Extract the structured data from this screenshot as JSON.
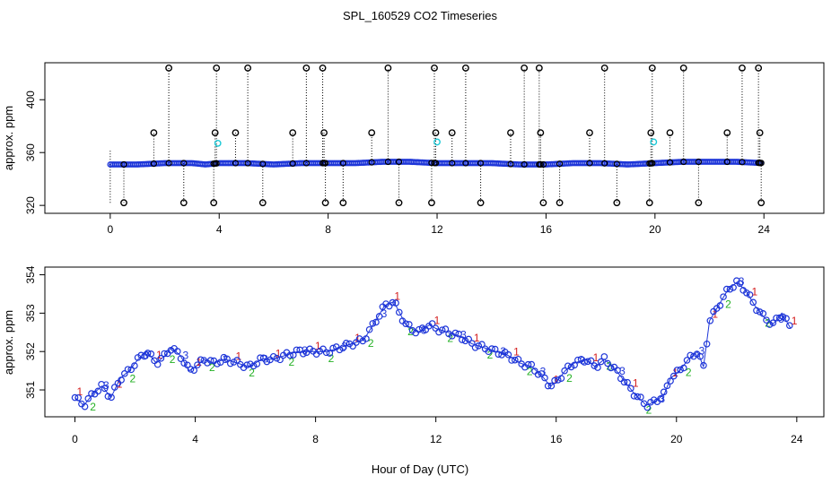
{
  "chart_data": {
    "title": "SPL_160529  CO2 Timeseries",
    "xlabel": "Hour of Day (UTC)",
    "charts": [
      {
        "type": "scatter",
        "name": "top-panel",
        "ylabel": "approx. ppm",
        "xlim": [
          -2.4,
          26.2
        ],
        "ylim": [
          314,
          428
        ],
        "xticks": [
          0,
          4,
          8,
          12,
          16,
          20,
          24
        ],
        "yticks": [
          320,
          360,
          400
        ],
        "baseline": {
          "x": [
            0,
            1,
            2,
            3,
            3.5,
            4,
            5,
            6,
            7,
            8,
            9,
            10,
            11,
            12,
            13,
            14,
            15,
            16,
            17,
            18,
            19,
            20,
            21,
            22,
            23,
            24
          ],
          "y": [
            351,
            351,
            352,
            352,
            351,
            352,
            352,
            351,
            352,
            352,
            352,
            353,
            353,
            352,
            352,
            352,
            351,
            351,
            352,
            352,
            351,
            352,
            353,
            353,
            353,
            352
          ]
        },
        "spikes_high": [
          2.15,
          3.9,
          5.05,
          7.2,
          7.8,
          10.2,
          11.9,
          13.05,
          15.2,
          15.75,
          18.15,
          19.9,
          21.05,
          23.2,
          23.8
        ],
        "spikes_low": [
          0.5,
          2.7,
          3.8,
          5.6,
          7.9,
          8.55,
          10.6,
          11.8,
          13.6,
          15.9,
          16.5,
          18.6,
          19.8,
          21.6,
          23.9
        ],
        "spikes_mid": [
          1.6,
          3.85,
          4.6,
          6.7,
          7.85,
          9.6,
          11.95,
          12.55,
          14.7,
          15.8,
          17.6,
          19.85,
          20.55,
          22.65,
          23.85
        ],
        "cyan_points": [
          {
            "x": 3.95,
            "y": 367
          },
          {
            "x": 12.0,
            "y": 368
          },
          {
            "x": 19.95,
            "y": 368
          }
        ]
      },
      {
        "type": "scatter",
        "name": "bottom-panel",
        "ylabel": "approx. ppm",
        "xlim": [
          -1.0,
          24.9
        ],
        "ylim": [
          350.3,
          354.2
        ],
        "xticks": [
          0,
          4,
          8,
          12,
          16,
          20,
          24
        ],
        "yticks": [
          351,
          352,
          353,
          354
        ],
        "series": {
          "x": [
            0.0,
            0.3,
            0.6,
            0.9,
            1.2,
            1.5,
            1.8,
            2.1,
            2.4,
            2.7,
            3.0,
            3.2,
            3.5,
            3.8,
            4.0,
            4.3,
            4.6,
            5.0,
            5.4,
            5.8,
            6.2,
            6.6,
            7.0,
            7.4,
            7.8,
            8.0,
            8.4,
            8.8,
            9.2,
            9.6,
            10.0,
            10.3,
            10.6,
            11.0,
            11.4,
            11.8,
            12.0,
            12.4,
            12.8,
            13.2,
            13.6,
            14.0,
            14.4,
            14.8,
            15.2,
            15.6,
            15.8,
            16.0,
            16.3,
            16.6,
            17.0,
            17.3,
            17.6,
            18.0,
            18.3,
            18.6,
            19.0,
            19.3,
            19.6,
            19.8,
            20.1,
            20.4,
            20.7,
            20.9,
            21.1,
            21.4,
            21.7,
            22.0,
            22.3,
            22.6,
            22.9,
            23.2,
            23.5,
            23.8
          ],
          "y": [
            350.8,
            350.6,
            350.9,
            351.1,
            350.8,
            351.3,
            351.5,
            351.8,
            352.0,
            351.7,
            351.9,
            352.1,
            351.9,
            351.5,
            351.6,
            351.8,
            351.7,
            351.8,
            351.7,
            351.6,
            351.8,
            351.8,
            351.9,
            352.0,
            352.0,
            352.0,
            352.0,
            352.1,
            352.2,
            352.3,
            352.8,
            353.2,
            353.3,
            352.7,
            352.5,
            352.7,
            352.6,
            352.5,
            352.4,
            352.2,
            352.1,
            352.0,
            351.9,
            351.7,
            351.6,
            351.3,
            351.1,
            351.2,
            351.5,
            351.7,
            351.8,
            351.6,
            351.8,
            351.5,
            351.2,
            350.9,
            350.6,
            350.7,
            350.9,
            351.3,
            351.5,
            351.8,
            352.0,
            351.6,
            352.8,
            353.2,
            353.6,
            353.8,
            353.6,
            353.2,
            352.9,
            352.7,
            353.0,
            352.6
          ]
        },
        "legend_glyphs": [
          "1",
          "2",
          "3"
        ]
      }
    ]
  }
}
